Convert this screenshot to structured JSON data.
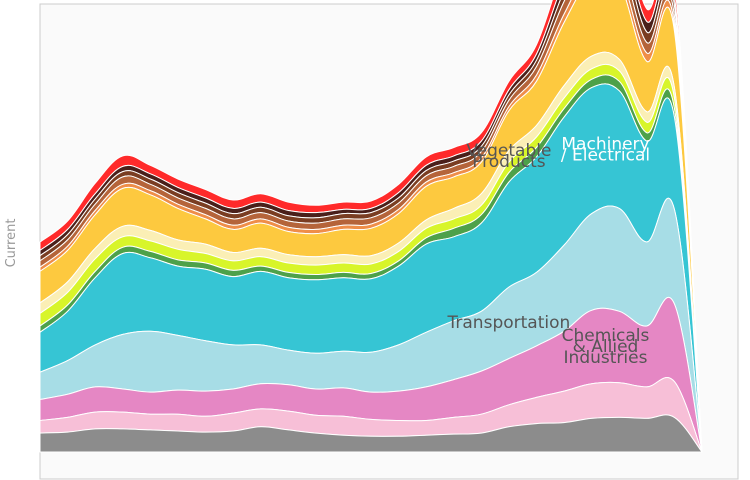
{
  "chart_data": {
    "type": "area",
    "subtype": "streamgraph",
    "ylabel": "Current",
    "xlabel": "",
    "title": "",
    "x": [
      0,
      1,
      2,
      3,
      4,
      5,
      6,
      7,
      8,
      9,
      10,
      11,
      12,
      13,
      14,
      15,
      16,
      17,
      18,
      19,
      20,
      21,
      22,
      23,
      24
    ],
    "series": [
      {
        "name": "",
        "color": "#8c8c8c",
        "values": [
          18,
          19,
          22,
          22,
          21,
          20,
          19,
          20,
          24,
          21,
          18,
          16,
          15,
          15,
          16,
          17,
          18,
          24,
          27,
          28,
          32,
          33,
          32,
          33,
          0
        ]
      },
      {
        "name": "",
        "color": "#f7bfd7",
        "values": [
          12,
          14,
          16,
          16,
          15,
          16,
          15,
          17,
          17,
          18,
          17,
          18,
          16,
          15,
          14,
          16,
          18,
          21,
          25,
          30,
          33,
          33,
          30,
          34,
          0
        ]
      },
      {
        "name": "Chemicals & Allied Industries",
        "color": "#e587c4",
        "values": [
          20,
          22,
          24,
          22,
          21,
          23,
          24,
          23,
          24,
          25,
          25,
          27,
          26,
          28,
          32,
          36,
          41,
          44,
          49,
          57,
          70,
          68,
          58,
          74,
          0
        ]
      },
      {
        "name": "Transportation",
        "color": "#a7dde6",
        "values": [
          26,
          32,
          40,
          52,
          58,
          52,
          48,
          42,
          37,
          33,
          34,
          35,
          38,
          44,
          52,
          56,
          57,
          68,
          70,
          82,
          92,
          98,
          80,
          90,
          0
        ]
      },
      {
        "name": "Machinery / Electrical",
        "color": "#36c5d4",
        "values": [
          38,
          47,
          64,
          77,
          70,
          66,
          68,
          65,
          70,
          69,
          70,
          70,
          70,
          75,
          84,
          80,
          84,
          100,
          110,
          122,
          120,
          112,
          96,
          88,
          0
        ]
      },
      {
        "name": "",
        "color": "#4da14a",
        "values": [
          6,
          6,
          6,
          6,
          6,
          6,
          6,
          6,
          5,
          5,
          5,
          5,
          5,
          5,
          6,
          8,
          8,
          9,
          9,
          8,
          8,
          9,
          8,
          8,
          0
        ]
      },
      {
        "name": "",
        "color": "#d8f52a",
        "values": [
          12,
          12,
          12,
          10,
          10,
          10,
          9,
          9,
          9,
          9,
          9,
          9,
          9,
          9,
          9,
          9,
          9,
          10,
          10,
          10,
          10,
          10,
          10,
          10,
          0
        ]
      },
      {
        "name": "Vegetable Products",
        "color": "#fbefb5",
        "values": [
          10,
          10,
          10,
          10,
          10,
          9,
          9,
          8,
          8,
          8,
          8,
          8,
          8,
          8,
          8,
          10,
          11,
          11,
          11,
          12,
          12,
          11,
          10,
          10,
          0
        ]
      },
      {
        "name": "",
        "color": "#fdc93f",
        "values": [
          30,
          30,
          32,
          36,
          34,
          30,
          24,
          22,
          24,
          22,
          22,
          24,
          26,
          28,
          32,
          30,
          30,
          38,
          42,
          60,
          74,
          72,
          48,
          54,
          0
        ]
      },
      {
        "name": "",
        "color": "#ef8e49",
        "values": [
          4,
          4,
          4,
          4,
          4,
          4,
          4,
          4,
          4,
          4,
          4,
          4,
          4,
          4,
          4,
          4,
          4,
          4,
          6,
          8,
          10,
          10,
          8,
          6,
          0
        ]
      },
      {
        "name": "",
        "color": "#b5643a",
        "values": [
          6,
          6,
          6,
          7,
          6,
          6,
          6,
          6,
          6,
          6,
          6,
          6,
          6,
          6,
          6,
          6,
          6,
          6,
          8,
          12,
          14,
          14,
          10,
          8,
          0
        ]
      },
      {
        "name": "",
        "color": "#7a3d22",
        "values": [
          5,
          5,
          5,
          5,
          5,
          5,
          5,
          5,
          5,
          5,
          5,
          5,
          5,
          5,
          5,
          5,
          5,
          5,
          6,
          10,
          14,
          16,
          10,
          10,
          0
        ]
      },
      {
        "name": "",
        "color": "#4a1f1a",
        "values": [
          5,
          5,
          5,
          5,
          5,
          5,
          5,
          5,
          5,
          5,
          5,
          4,
          4,
          5,
          5,
          5,
          5,
          5,
          6,
          10,
          12,
          12,
          10,
          9,
          0
        ]
      },
      {
        "name": "",
        "color": "#ff2a2a",
        "values": [
          8,
          8,
          10,
          10,
          8,
          8,
          8,
          8,
          8,
          8,
          7,
          7,
          7,
          8,
          8,
          8,
          8,
          8,
          9,
          14,
          16,
          18,
          12,
          14,
          0
        ]
      }
    ]
  }
}
